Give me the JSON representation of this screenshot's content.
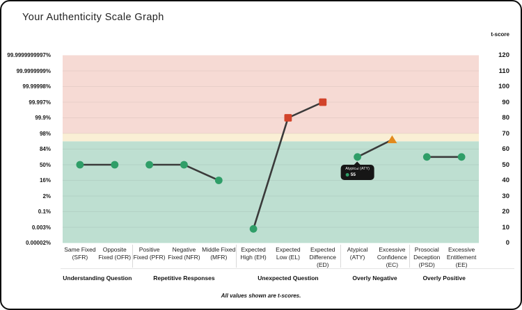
{
  "title": "Your Authenticity Scale Graph",
  "footer_note": "All values shown are t-scores.",
  "chart_data": {
    "type": "line",
    "title": "Your Authenticity Scale Graph",
    "note": "All values shown are t-scores.",
    "grid": true,
    "line_color": "#3a3a3a",
    "marker_colors": {
      "circle": "#2f9e68",
      "square": "#d2432a",
      "triangle": "#e28a1d"
    },
    "right_axis": {
      "title": "t-score",
      "min": 0,
      "max": 120,
      "step": 10,
      "ticks": [
        120,
        110,
        100,
        90,
        80,
        70,
        60,
        50,
        40,
        30,
        20,
        10,
        0
      ]
    },
    "left_axis": {
      "ticks": [
        {
          "t": 120,
          "label": "99.9999999997%"
        },
        {
          "t": 110,
          "label": "99.9999999%"
        },
        {
          "t": 100,
          "label": "99.99998%"
        },
        {
          "t": 90,
          "label": "99.997%"
        },
        {
          "t": 80,
          "label": "99.9%"
        },
        {
          "t": 70,
          "label": "98%"
        },
        {
          "t": 60,
          "label": "84%"
        },
        {
          "t": 50,
          "label": "50%"
        },
        {
          "t": 40,
          "label": "16%"
        },
        {
          "t": 30,
          "label": "2%"
        },
        {
          "t": 20,
          "label": "0.1%"
        },
        {
          "t": 10,
          "label": "0.003%"
        },
        {
          "t": 0,
          "label": "0.00002%"
        }
      ]
    },
    "zones": [
      {
        "name": "low",
        "from": 0,
        "to": 65,
        "color": "#bedfd1"
      },
      {
        "name": "mid",
        "from": 65,
        "to": 70,
        "color": "#faefd5"
      },
      {
        "name": "high",
        "from": 70,
        "to": 120,
        "color": "#f6dad4"
      }
    ],
    "groups": [
      {
        "label": "Understanding Question",
        "points": [
          {
            "label": "Same Fixed (SFR)",
            "t": 50,
            "marker": "circle"
          },
          {
            "label": "Opposite Fixed (OFR)",
            "t": 50,
            "marker": "circle"
          }
        ]
      },
      {
        "label": "Repetitive Responses",
        "points": [
          {
            "label": "Positive Fixed (PFR)",
            "t": 50,
            "marker": "circle"
          },
          {
            "label": "Negative Fixed (NFR)",
            "t": 50,
            "marker": "circle"
          },
          {
            "label": "Middle Fixed (MFR)",
            "t": 40,
            "marker": "circle"
          }
        ]
      },
      {
        "label": "Unexpected Question",
        "points": [
          {
            "label": "Expected High (EH)",
            "t": 9,
            "marker": "circle"
          },
          {
            "label": "Expected Low (EL)",
            "t": 80,
            "marker": "square"
          },
          {
            "label": "Expected Difference (ED)",
            "t": 90,
            "marker": "square"
          }
        ]
      },
      {
        "label": "Overly Negative",
        "points": [
          {
            "label": "Atypical (ATY)",
            "t": 55,
            "marker": "circle"
          },
          {
            "label": "Excessive Confidence (EC)",
            "t": 66,
            "marker": "triangle"
          }
        ]
      },
      {
        "label": "Overly Positive",
        "points": [
          {
            "label": "Prosocial Deception (PSD)",
            "t": 55,
            "marker": "circle"
          },
          {
            "label": "Excessive Entitlement (EE)",
            "t": 55,
            "marker": "circle"
          }
        ]
      }
    ],
    "tooltip": {
      "title": "Atypical (ATY)",
      "value": "55"
    }
  }
}
